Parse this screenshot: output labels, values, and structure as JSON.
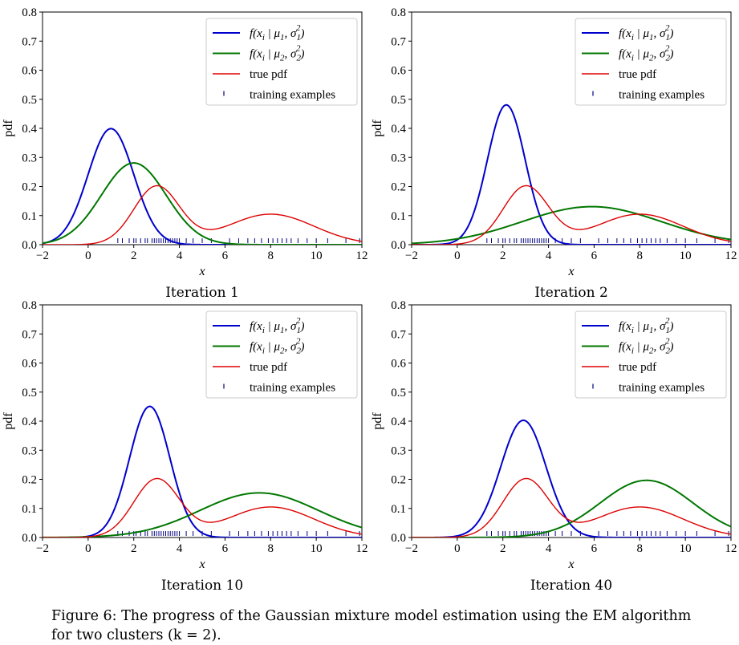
{
  "caption": {
    "label": "Figure 6:",
    "text": "The progress of the Gaussian mixture model estimation using the EM algorithm for two clusters (k = 2)."
  },
  "colors": {
    "component1": "#0000cc",
    "component2": "#007700",
    "true_pdf": "#dd0000",
    "training": "#000080"
  },
  "legend": {
    "component1": "f(xi | μ1, σ1²)",
    "component2": "f(xi | μ2, σ2²)",
    "true_pdf": "true pdf",
    "training": "training examples"
  },
  "chart_data": [
    {
      "type": "line",
      "title": "Iteration 1",
      "xlabel": "x",
      "ylabel": "pdf",
      "xlim": [
        -2,
        12
      ],
      "ylim": [
        0,
        0.8
      ],
      "xticks": [
        -2,
        0,
        2,
        4,
        6,
        8,
        10,
        12
      ],
      "yticks": [
        0.0,
        0.1,
        0.2,
        0.3,
        0.4,
        0.5,
        0.6,
        0.7,
        0.8
      ],
      "legend_position": "top-right",
      "grid": false,
      "series": [
        {
          "key": "component1",
          "mu": 1.0,
          "sigma": 1.0
        },
        {
          "key": "component2",
          "mu": 2.0,
          "sigma": 1.42
        },
        {
          "key": "true_pdf",
          "components": [
            {
              "mu": 3.0,
              "sigma": 1.0
            },
            {
              "mu": 8.0,
              "sigma": 1.9
            }
          ]
        }
      ]
    },
    {
      "type": "line",
      "title": "Iteration 2",
      "xlabel": "x",
      "ylabel": "pdf",
      "xlim": [
        -2,
        12
      ],
      "ylim": [
        0,
        0.8
      ],
      "xticks": [
        -2,
        0,
        2,
        4,
        6,
        8,
        10,
        12
      ],
      "yticks": [
        0.0,
        0.1,
        0.2,
        0.3,
        0.4,
        0.5,
        0.6,
        0.7,
        0.8
      ],
      "legend_position": "top-right",
      "grid": false,
      "series": [
        {
          "key": "component1",
          "mu": 2.15,
          "sigma": 0.83
        },
        {
          "key": "component2",
          "mu": 5.9,
          "sigma": 3.05
        },
        {
          "key": "true_pdf",
          "components": [
            {
              "mu": 3.0,
              "sigma": 1.0
            },
            {
              "mu": 8.0,
              "sigma": 1.9
            }
          ]
        }
      ]
    },
    {
      "type": "line",
      "title": "Iteration 10",
      "xlabel": "x",
      "ylabel": "pdf",
      "xlim": [
        -2,
        12
      ],
      "ylim": [
        0,
        0.8
      ],
      "xticks": [
        -2,
        0,
        2,
        4,
        6,
        8,
        10,
        12
      ],
      "yticks": [
        0.0,
        0.1,
        0.2,
        0.3,
        0.4,
        0.5,
        0.6,
        0.7,
        0.8
      ],
      "legend_position": "top-right",
      "grid": false,
      "series": [
        {
          "key": "component1",
          "mu": 2.7,
          "sigma": 0.885
        },
        {
          "key": "component2",
          "mu": 7.5,
          "sigma": 2.6
        },
        {
          "key": "true_pdf",
          "components": [
            {
              "mu": 3.0,
              "sigma": 1.0
            },
            {
              "mu": 8.0,
              "sigma": 1.9
            }
          ]
        }
      ]
    },
    {
      "type": "line",
      "title": "Iteration 40",
      "xlabel": "x",
      "ylabel": "pdf",
      "xlim": [
        -2,
        12
      ],
      "ylim": [
        0,
        0.8
      ],
      "xticks": [
        -2,
        0,
        2,
        4,
        6,
        8,
        10,
        12
      ],
      "yticks": [
        0.0,
        0.1,
        0.2,
        0.3,
        0.4,
        0.5,
        0.6,
        0.7,
        0.8
      ],
      "legend_position": "top-right",
      "grid": false,
      "series": [
        {
          "key": "component1",
          "mu": 2.9,
          "sigma": 0.99
        },
        {
          "key": "component2",
          "mu": 8.3,
          "sigma": 2.03
        },
        {
          "key": "true_pdf",
          "components": [
            {
              "mu": 3.0,
              "sigma": 1.0
            },
            {
              "mu": 8.0,
              "sigma": 1.9
            }
          ]
        }
      ]
    }
  ],
  "training_examples": [
    1.3,
    1.5,
    1.8,
    2.0,
    2.1,
    2.3,
    2.5,
    2.6,
    2.8,
    2.9,
    3.0,
    3.1,
    3.2,
    3.3,
    3.4,
    3.5,
    3.6,
    3.7,
    3.8,
    3.9,
    4.0,
    4.3,
    4.6,
    5.0,
    5.4,
    6.2,
    6.6,
    7.0,
    7.3,
    7.6,
    7.9,
    8.1,
    8.3,
    8.5,
    8.7,
    8.9,
    9.2,
    9.6,
    10.0,
    10.5,
    11.3,
    11.9
  ]
}
